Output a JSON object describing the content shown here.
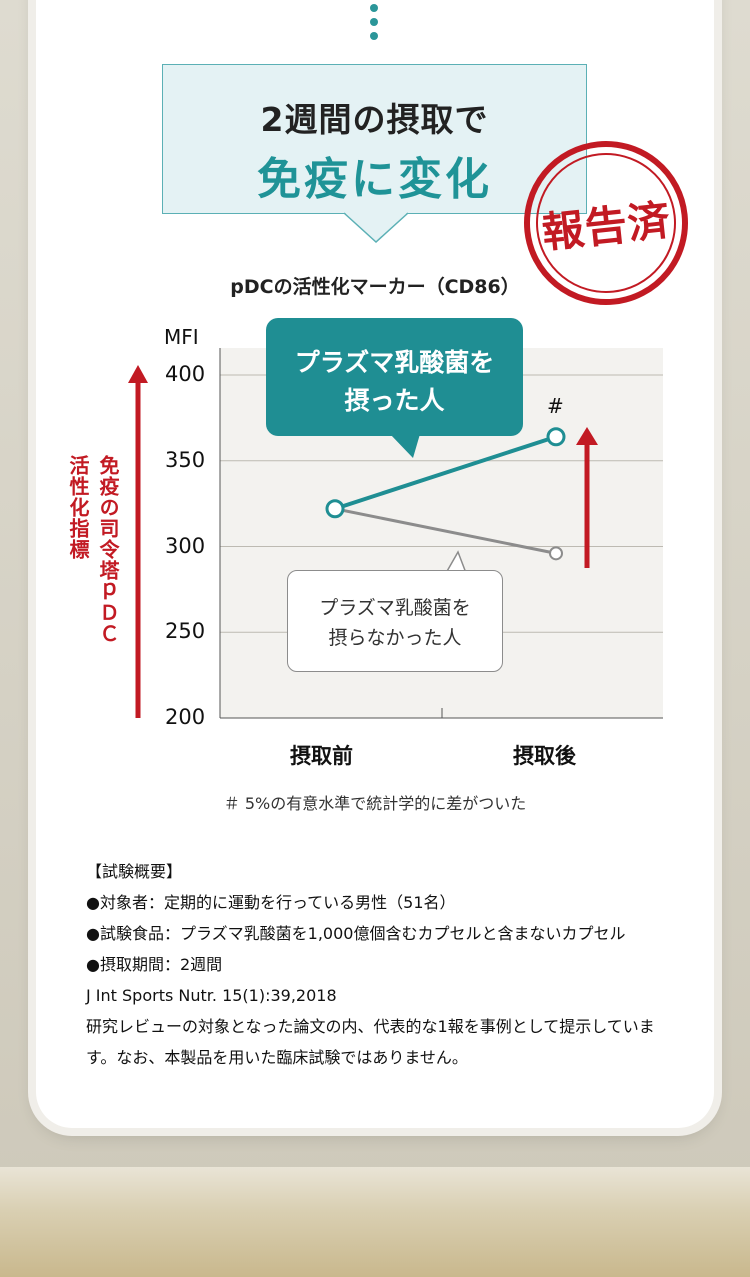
{
  "headline": {
    "line1": "2週間の摂取で",
    "line2": "免疫に変化"
  },
  "stamp": "報告済",
  "chart_data": {
    "type": "line",
    "title": "pDCの活性化マーカー（CD86）",
    "ylabel": "MFI",
    "ylim": [
      200,
      400
    ],
    "yticks": [
      200,
      250,
      300,
      350,
      400
    ],
    "categories": [
      "摂取前",
      "摂取後"
    ],
    "series": [
      {
        "name": "プラズマ乳酸菌を摂った人",
        "values": [
          322,
          364
        ],
        "color": "#1f8e93"
      },
      {
        "name": "プラズマ乳酸菌を摂らなかった人",
        "values": [
          322,
          296
        ],
        "color": "#8c8c8c"
      }
    ],
    "significance_mark": "#",
    "side_label_1": "免疫の司令塔ｐＤＣ",
    "side_label_2": "活性化指標",
    "callout_teal": [
      "プラズマ乳酸菌を",
      "摂った人"
    ],
    "callout_white": [
      "プラズマ乳酸菌を",
      "摂らなかった人"
    ],
    "grid": true
  },
  "footnote": "＃ 5%の有意水準で統計学的に差がついた",
  "notes": [
    "【試験概要】",
    "●対象者：定期的に運動を行っている男性（51名）",
    "●試験食品：プラズマ乳酸菌を1,000億個含むカプセルと含まないカプセル",
    "●摂取期間：2週間",
    "J Int Sports Nutr. 15(1):39,2018",
    "研究レビューの対象となった論文の内、代表的な1報を事例として提示しています。なお、本製品を用いた臨床試験ではありません。"
  ],
  "colors": {
    "teal": "#1f8e93",
    "red": "#c21a23",
    "gray": "#8c8c8c"
  }
}
